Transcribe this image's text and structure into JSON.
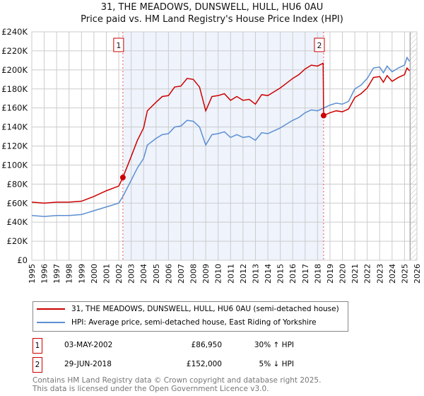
{
  "chart_data": {
    "type": "line",
    "title": "31, THE MEADOWS, DUNSWELL, HULL, HU6 0AU",
    "subtitle": "Price paid vs. HM Land Registry's House Price Index (HPI)",
    "xlim": [
      1995,
      2026
    ],
    "ylim": [
      0,
      240000
    ],
    "y_ticks": [
      0,
      20000,
      40000,
      60000,
      80000,
      100000,
      120000,
      140000,
      160000,
      180000,
      200000,
      220000,
      240000
    ],
    "y_tick_labels": [
      "£0",
      "£20K",
      "£40K",
      "£60K",
      "£80K",
      "£100K",
      "£120K",
      "£140K",
      "£160K",
      "£180K",
      "£200K",
      "£220K",
      "£240K"
    ],
    "x_ticks": [
      1995,
      1996,
      1997,
      1998,
      1999,
      2000,
      2001,
      2002,
      2003,
      2004,
      2005,
      2006,
      2007,
      2008,
      2009,
      2010,
      2011,
      2012,
      2013,
      2014,
      2015,
      2016,
      2017,
      2018,
      2019,
      2020,
      2021,
      2022,
      2023,
      2024,
      2025,
      2026
    ],
    "grid": true,
    "shaded_range": [
      2002.33,
      2018.49
    ],
    "hatched_from": 2025.45,
    "series": [
      {
        "name": "31, THE MEADOWS, DUNSWELL, HULL, HU6 0AU (semi-detached house)",
        "color": "#cc0000",
        "x": [
          1995,
          1996,
          1997,
          1998,
          1999,
          2000,
          2001,
          2002,
          2002.33,
          2003,
          2003.5,
          2004,
          2004.3,
          2005,
          2005.5,
          2006,
          2006.5,
          2007,
          2007.5,
          2008,
          2008.5,
          2009,
          2009.5,
          2010,
          2010.5,
          2011,
          2011.5,
          2012,
          2012.5,
          2013,
          2013.5,
          2014,
          2014.5,
          2015,
          2015.5,
          2016,
          2016.5,
          2017,
          2017.5,
          2018,
          2018.45,
          2018.49,
          2019,
          2019.5,
          2020,
          2020.5,
          2021,
          2021.5,
          2022,
          2022.5,
          2023,
          2023.3,
          2023.6,
          2024,
          2024.5,
          2025,
          2025.2,
          2025.4
        ],
        "y": [
          61000,
          60000,
          61000,
          61000,
          62000,
          67000,
          73000,
          78000,
          86950,
          109000,
          126000,
          139000,
          157000,
          166000,
          172000,
          173000,
          182000,
          183000,
          191000,
          190000,
          182000,
          157000,
          172000,
          173000,
          175000,
          168000,
          172000,
          168000,
          169000,
          164000,
          174000,
          173000,
          177000,
          181000,
          186000,
          191000,
          195000,
          201000,
          205000,
          204000,
          207000,
          152000,
          155000,
          157000,
          156000,
          159000,
          171000,
          175000,
          181000,
          192000,
          193000,
          187000,
          194000,
          188000,
          192000,
          195000,
          202000,
          199000
        ]
      },
      {
        "name": "HPI: Average price, semi-detached house, East Riding of Yorkshire",
        "color": "#5b8fd1",
        "x": [
          1995,
          1996,
          1997,
          1998,
          1999,
          2000,
          2001,
          2002,
          2002.33,
          2003,
          2003.5,
          2004,
          2004.3,
          2005,
          2005.5,
          2006,
          2006.5,
          2007,
          2007.5,
          2008,
          2008.5,
          2009,
          2009.5,
          2010,
          2010.5,
          2011,
          2011.5,
          2012,
          2012.5,
          2013,
          2013.5,
          2014,
          2014.5,
          2015,
          2015.5,
          2016,
          2016.5,
          2017,
          2017.5,
          2018,
          2018.5,
          2019,
          2019.5,
          2020,
          2020.5,
          2021,
          2021.5,
          2022,
          2022.5,
          2023,
          2023.3,
          2023.6,
          2024,
          2024.5,
          2025,
          2025.2,
          2025.4
        ],
        "y": [
          47000,
          46000,
          47000,
          47000,
          48000,
          52000,
          56000,
          60000,
          67000,
          84000,
          97000,
          107000,
          121000,
          128000,
          132000,
          133000,
          140000,
          141000,
          147000,
          146000,
          140000,
          121000,
          132000,
          133000,
          135000,
          129000,
          132000,
          129000,
          130000,
          126000,
          134000,
          133000,
          136000,
          139000,
          143000,
          147000,
          150000,
          155000,
          158000,
          157000,
          160000,
          163000,
          165000,
          164000,
          167000,
          180000,
          184000,
          191000,
          202000,
          203000,
          197000,
          204000,
          198000,
          202000,
          205000,
          213000,
          209000
        ]
      }
    ],
    "annotations": [
      {
        "label": "1",
        "x": 2002.33,
        "y": 86950
      },
      {
        "label": "2",
        "x": 2018.49,
        "y": 152000
      }
    ]
  },
  "transactions": [
    {
      "num": "1",
      "date": "03-MAY-2002",
      "price": "£86,950",
      "hpi": "30% ↑ HPI"
    },
    {
      "num": "2",
      "date": "29-JUN-2018",
      "price": "£152,000",
      "hpi": "5% ↓ HPI"
    }
  ],
  "footer": [
    "Contains HM Land Registry data © Crown copyright and database right 2025.",
    "This data is licensed under the Open Government Licence v3.0."
  ]
}
